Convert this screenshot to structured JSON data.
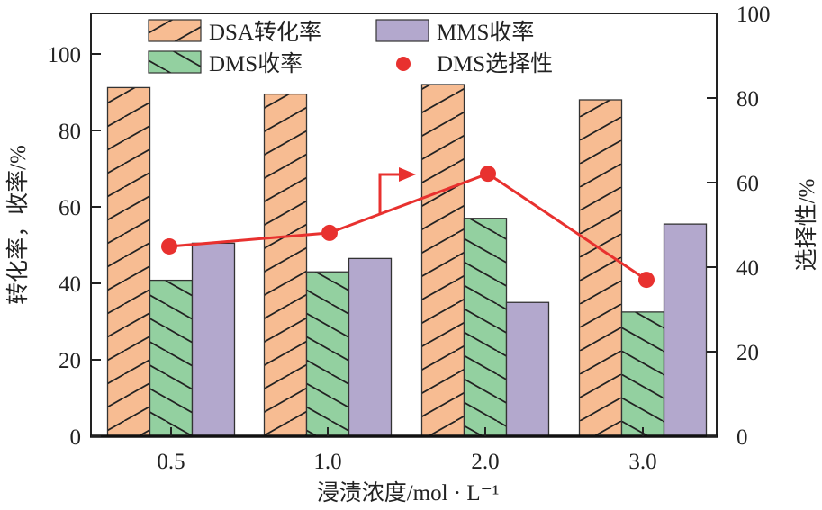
{
  "chart_data": {
    "type": "bar",
    "categories": [
      "0.5",
      "1.0",
      "2.0",
      "3.0"
    ],
    "xlabel": "浸渍浓度/mol · L⁻¹",
    "ylabel": "转化率，收率/%",
    "ylabel_right": "选择性/%",
    "ylim": [
      0,
      110
    ],
    "ylim_right": [
      0,
      100
    ],
    "yticks": [
      0,
      20,
      40,
      60,
      80,
      100
    ],
    "yticks_right": [
      0,
      20,
      40,
      60,
      80,
      100
    ],
    "grid": false,
    "legend_placement": "top",
    "series": [
      {
        "name": "DSA转化率",
        "kind": "bar",
        "axis": "left",
        "color": "#F7BC92",
        "hatch": "forward",
        "values": [
          91.2,
          89.5,
          92.0,
          88.0
        ]
      },
      {
        "name": "DMS收率",
        "kind": "bar",
        "axis": "left",
        "color": "#93D0A0",
        "hatch": "backward",
        "values": [
          40.8,
          43.0,
          57.0,
          32.5
        ]
      },
      {
        "name": "MMS收率",
        "kind": "bar",
        "axis": "left",
        "color": "#B3A8CD",
        "hatch": "none",
        "values": [
          50.5,
          46.5,
          35.0,
          55.5
        ]
      },
      {
        "name": "DMS选择性",
        "kind": "line-scatter",
        "axis": "right",
        "color": "#E8312F",
        "values": [
          44.9,
          48.1,
          62.1,
          37.0
        ]
      }
    ],
    "annotation": "arrow pointing right indicating selectivity line uses right axis"
  }
}
